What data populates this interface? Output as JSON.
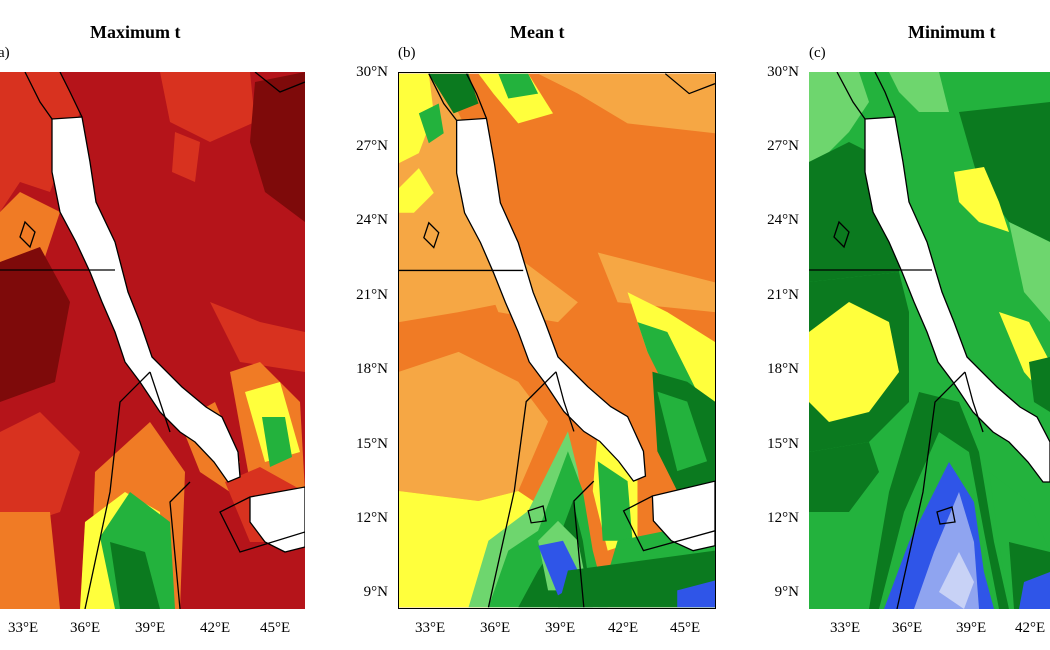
{
  "panels": [
    {
      "title": "Maximum t",
      "label": "(a)"
    },
    {
      "title": "Mean t",
      "label": "(b)"
    },
    {
      "title": "Minimum t",
      "label": "(c)"
    }
  ],
  "y_ticks": [
    "30°N",
    "27°N",
    "24°N",
    "21°N",
    "18°N",
    "15°N",
    "12°N",
    "9°N"
  ],
  "x_ticks": [
    "33°E",
    "36°E",
    "39°E",
    "42°E",
    "45°E"
  ],
  "colors": {
    "darkred": "#7e0a0a",
    "red": "#b5141a",
    "redorange": "#d8321f",
    "orange": "#f07b25",
    "lightorange": "#f6a744",
    "yellow": "#ffff3c",
    "lightgreen": "#6ed66e",
    "green": "#23b23d",
    "darkgreen": "#0b7a1f",
    "blue": "#2f55e8",
    "lightblue": "#8fa4f0",
    "paleblue": "#c8d2f6",
    "sea": "#ffffff"
  }
}
